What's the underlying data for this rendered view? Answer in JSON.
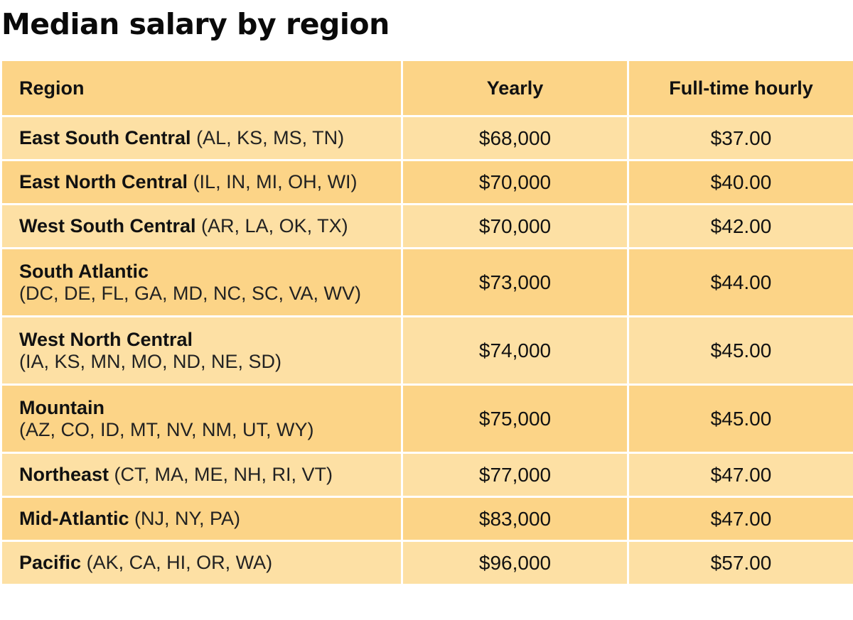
{
  "title": "Median salary by region",
  "table": {
    "headers": [
      "Region",
      "Yearly",
      "Full-time hourly"
    ],
    "rows": [
      {
        "name": "East South Central",
        "states": "(AL, KS, MS, TN)",
        "yearly": "$68,000",
        "hourly": "$37.00"
      },
      {
        "name": "East North Central",
        "states": "(IL, IN, MI, OH, WI)",
        "yearly": "$70,000",
        "hourly": "$40.00"
      },
      {
        "name": "West South Central",
        "states": "(AR, LA, OK, TX)",
        "yearly": "$70,000",
        "hourly": "$42.00"
      },
      {
        "name": "South Atlantic",
        "states": "(DC, DE, FL, GA, MD, NC, SC, VA, WV)",
        "yearly": "$73,000",
        "hourly": "$44.00"
      },
      {
        "name": "West North Central",
        "states": "(IA, KS, MN, MO, ND, NE, SD)",
        "yearly": "$74,000",
        "hourly": "$45.00"
      },
      {
        "name": "Mountain",
        "states": "(AZ, CO, ID, MT, NV, NM, UT, WY)",
        "yearly": "$75,000",
        "hourly": "$45.00"
      },
      {
        "name": "Northeast",
        "states": "(CT, MA, ME, NH, RI, VT)",
        "yearly": "$77,000",
        "hourly": "$47.00"
      },
      {
        "name": "Mid-Atlantic",
        "states": "(NJ, NY, PA)",
        "yearly": "$83,000",
        "hourly": "$47.00"
      },
      {
        "name": "Pacific",
        "states": "(AK, CA, HI, OR, WA)",
        "yearly": "$96,000",
        "hourly": "$57.00"
      }
    ]
  },
  "colors": {
    "header": "#fcd487",
    "row_light": "#fde0a4",
    "row_dark": "#fcd487"
  },
  "chart_data": {
    "type": "table",
    "title": "Median salary by region",
    "columns": [
      "Region",
      "Yearly",
      "Full-time hourly"
    ],
    "categories": [
      "East South Central",
      "East North Central",
      "West South Central",
      "South Atlantic",
      "West North Central",
      "Mountain",
      "Northeast",
      "Mid-Atlantic",
      "Pacific"
    ],
    "series": [
      {
        "name": "Yearly",
        "values": [
          68000,
          70000,
          70000,
          73000,
          74000,
          75000,
          77000,
          83000,
          96000
        ]
      },
      {
        "name": "Full-time hourly",
        "values": [
          37.0,
          40.0,
          42.0,
          44.0,
          45.0,
          45.0,
          47.0,
          47.0,
          57.0
        ]
      }
    ]
  }
}
